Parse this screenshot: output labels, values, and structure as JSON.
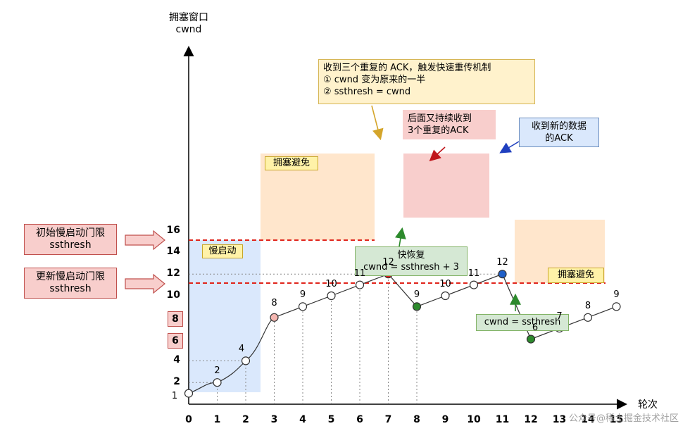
{
  "axes": {
    "y_title_line1": "拥塞窗口",
    "y_title_line2": "cwnd",
    "x_title": "轮次",
    "x_ticks": [
      "0",
      "1",
      "2",
      "3",
      "4",
      "5",
      "6",
      "7",
      "8",
      "9",
      "10",
      "11",
      "12",
      "13",
      "14",
      "15"
    ],
    "y_ticks": [
      "2",
      "4",
      "6",
      "8",
      "10",
      "12",
      "14",
      "16"
    ]
  },
  "side_labels": {
    "initial_line1": "初始慢启动门限",
    "initial_line2": "ssthresh",
    "updated_line1": "更新慢启动门限",
    "updated_line2": "ssthresh"
  },
  "regions": {
    "slow_start": "慢启动",
    "congestion_avoidance_1": "拥塞避免",
    "congestion_avoidance_2": "拥塞避免"
  },
  "callouts": {
    "triple_ack_line1": "收到三个重复的 ACK，触发快速重传机制",
    "triple_ack_line2": "① cwnd 变为原来的一半",
    "triple_ack_line3": "② ssthresh = cwnd",
    "more_dup_line1": "后面又持续收到",
    "more_dup_line2": "3个重复的ACK",
    "new_data_line1": "收到新的数据",
    "new_data_line2": "的ACK",
    "fast_recovery_line1": "快恢复",
    "fast_recovery_line2": "cwnd = ssthresh + 3",
    "cwnd_ssthresh": "cwnd = ssthresh"
  },
  "point_labels": [
    "1",
    "2",
    "4",
    "8",
    "9",
    "10",
    "11",
    "12",
    "9",
    "10",
    "11",
    "12",
    "6",
    "7",
    "8",
    "9"
  ],
  "watermark": "公众号@稀土掘金技术社区",
  "chart_data": {
    "type": "line",
    "xlabel": "轮次",
    "ylabel": "拥塞窗口 cwnd",
    "x": [
      0,
      1,
      2,
      3,
      4,
      5,
      6,
      7,
      8,
      9,
      10,
      11,
      12,
      13,
      14,
      15
    ],
    "series": [
      {
        "values": [
          1,
          2,
          4,
          8,
          9,
          10,
          11,
          12,
          9,
          10,
          11,
          12,
          6,
          7,
          8,
          9
        ]
      }
    ],
    "ssthresh_lines": [
      8,
      6
    ],
    "colors": {
      "slow_start_fill": "#dae8fc",
      "avoidance_fill": "#ffe6cc",
      "dup_ack_fill": "#f8cecc",
      "red_dashed": "#e0241b",
      "point_red": "#e0241b",
      "point_green": "#2d8a2d",
      "point_blue": "#1f5fc8",
      "point_pink": "#f4b6b0"
    }
  }
}
